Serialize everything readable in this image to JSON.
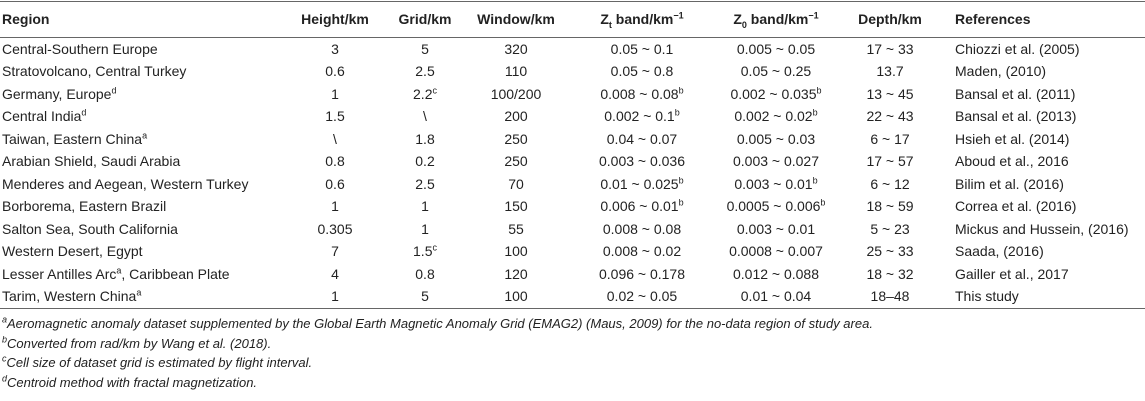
{
  "table": {
    "header": [
      "Region",
      "Height/km",
      "Grid/km",
      "Window/km",
      [
        {
          "text": "Z"
        },
        {
          "text": "t",
          "style": "sub"
        },
        " band/km",
        {
          "text": "−1",
          "style": "sup"
        }
      ],
      [
        {
          "text": "Z"
        },
        {
          "text": "0",
          "style": "sub"
        },
        " band/km",
        {
          "text": "−1",
          "style": "sup"
        }
      ],
      "Depth/km",
      "References"
    ],
    "rows": [
      [
        "Central-Southern Europe",
        "3",
        "5",
        "320",
        "0.05 ~ 0.1",
        "0.005 ~ 0.05",
        "17 ~ 33",
        "Chiozzi et al. (2005)"
      ],
      [
        "Stratovolcano, Central Turkey",
        "0.6",
        "2.5",
        "110",
        "0.05 ~ 0.8",
        "0.05 ~ 0.25",
        "13.7",
        "Maden, (2010)"
      ],
      [
        [
          "Germany, Europe",
          {
            "text": "d",
            "style": "sup"
          }
        ],
        "1",
        [
          "2.2",
          {
            "text": "c",
            "style": "sup"
          }
        ],
        "100/200",
        [
          "0.008 ~ 0.08",
          {
            "text": "b",
            "style": "sup"
          }
        ],
        [
          "0.002 ~ 0.035",
          {
            "text": "b",
            "style": "sup"
          }
        ],
        "13 ~ 45",
        "Bansal et al. (2011)"
      ],
      [
        [
          "Central India",
          {
            "text": "d",
            "style": "sup"
          }
        ],
        "1.5",
        "\\",
        "200",
        [
          "0.002 ~ 0.1",
          {
            "text": "b",
            "style": "sup"
          }
        ],
        [
          "0.002 ~ 0.02",
          {
            "text": "b",
            "style": "sup"
          }
        ],
        "22 ~ 43",
        "Bansal et al. (2013)"
      ],
      [
        [
          "Taiwan, Eastern China",
          {
            "text": "a",
            "style": "sup"
          }
        ],
        "\\",
        "1.8",
        "250",
        "0.04 ~ 0.07",
        "0.005 ~ 0.03",
        "6 ~ 17",
        "Hsieh et al. (2014)"
      ],
      [
        "Arabian Shield, Saudi Arabia",
        "0.8",
        "0.2",
        "250",
        "0.003 ~ 0.036",
        "0.003 ~ 0.027",
        "17 ~ 57",
        "Aboud et al., 2016"
      ],
      [
        "Menderes and Aegean, Western Turkey",
        "0.6",
        "2.5",
        "70",
        [
          "0.01 ~ 0.025",
          {
            "text": "b",
            "style": "sup"
          }
        ],
        [
          "0.003 ~ 0.01",
          {
            "text": "b",
            "style": "sup"
          }
        ],
        "6 ~ 12",
        "Bilim et al. (2016)"
      ],
      [
        "Borborema, Eastern Brazil",
        "1",
        "1",
        "150",
        [
          "0.006 ~ 0.01",
          {
            "text": "b",
            "style": "sup"
          }
        ],
        [
          "0.0005 ~ 0.006",
          {
            "text": "b",
            "style": "sup"
          }
        ],
        "18 ~ 59",
        "Correa et al. (2016)"
      ],
      [
        "Salton Sea, South California",
        "0.305",
        "1",
        "55",
        "0.008 ~ 0.08",
        "0.003 ~ 0.01",
        "5 ~ 23",
        "Mickus and Hussein, (2016)"
      ],
      [
        "Western Desert, Egypt",
        "7",
        [
          "1.5",
          {
            "text": "c",
            "style": "sup"
          }
        ],
        "100",
        "0.008 ~ 0.02",
        "0.0008 ~ 0.007",
        "25 ~ 33",
        "Saada, (2016)"
      ],
      [
        [
          "Lesser Antilles Arc",
          {
            "text": "a",
            "style": "sup"
          },
          ", Caribbean Plate"
        ],
        "4",
        "0.8",
        "120",
        "0.096 ~ 0.178",
        "0.012 ~ 0.088",
        "18 ~ 32",
        "Gailler et al., 2017"
      ],
      [
        [
          "Tarim, Western China",
          {
            "text": "a",
            "style": "sup"
          }
        ],
        "1",
        "5",
        "100",
        "0.02 ~ 0.05",
        "0.01 ~ 0.04",
        "18–48",
        "This study"
      ]
    ]
  },
  "footnotes": [
    [
      {
        "text": "a",
        "style": "sup"
      },
      "Aeromagnetic anomaly dataset supplemented by the Global Earth Magnetic Anomaly Grid (EMAG2) (Maus, 2009) for the no-data region of study area."
    ],
    [
      {
        "text": "b",
        "style": "sup"
      },
      "Converted from rad/km by Wang et al. (2018)."
    ],
    [
      {
        "text": "c",
        "style": "sup"
      },
      "Cell size of dataset grid is estimated by flight interval."
    ],
    [
      {
        "text": "d",
        "style": "sup"
      },
      "Centroid method with fractal magnetization."
    ]
  ]
}
